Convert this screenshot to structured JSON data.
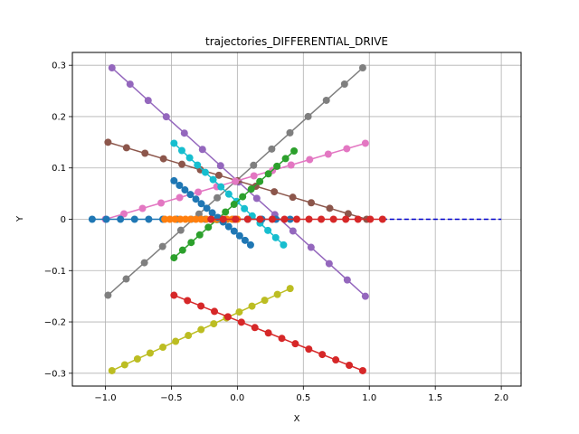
{
  "chart_data": {
    "type": "line",
    "title": "trajectories_DIFFERENTIAL_DRIVE",
    "xlabel": "X",
    "ylabel": "Y",
    "xlim": [
      -1.25,
      2.15
    ],
    "ylim": [
      -0.325,
      0.325
    ],
    "grid": true,
    "xticks": [
      -1.0,
      -0.5,
      0.0,
      0.5,
      1.0,
      1.5,
      2.0
    ],
    "xtick_labels": [
      "−1.0",
      "−0.5",
      "0.0",
      "0.5",
      "1.0",
      "1.5",
      "2.0"
    ],
    "yticks": [
      -0.3,
      -0.2,
      -0.1,
      0.0,
      0.1,
      0.2,
      0.3
    ],
    "ytick_labels": [
      "−0.3",
      "−0.2",
      "−0.1",
      "0",
      "0.1",
      "0.2",
      "0.3"
    ],
    "reference_line": {
      "x": [
        1.1,
        2.0
      ],
      "y": [
        0,
        0
      ],
      "color": "#0000cc",
      "style": "dashed"
    },
    "series": [
      {
        "color": "#9467bd",
        "x0": -0.95,
        "y0": 0.295,
        "x1": 0.97,
        "y1": -0.15,
        "n": 15
      },
      {
        "color": "#7f7f7f",
        "x0": -0.98,
        "y0": -0.148,
        "x1": 0.95,
        "y1": 0.295,
        "n": 15
      },
      {
        "color": "#bcbd22",
        "x0": -0.95,
        "y0": -0.295,
        "x1": 0.4,
        "y1": -0.135,
        "n": 15
      },
      {
        "color": "#d62728",
        "x0": -0.48,
        "y0": -0.148,
        "x1": 0.95,
        "y1": -0.295,
        "n": 15
      },
      {
        "color": "#8c564b",
        "x0": -0.98,
        "y0": 0.15,
        "x1": 0.98,
        "y1": 0.0,
        "n": 15
      },
      {
        "color": "#e377c2",
        "x0": -1.0,
        "y0": 0.0,
        "x1": 0.97,
        "y1": 0.148,
        "n": 15
      },
      {
        "color": "#17becf",
        "x0": -0.48,
        "y0": 0.148,
        "x1": 0.35,
        "y1": -0.05,
        "n": 15
      },
      {
        "color": "#2ca02c",
        "x0": -0.48,
        "y0": -0.075,
        "x1": 0.43,
        "y1": 0.133,
        "n": 15
      },
      {
        "color": "#1f77b4",
        "x0": -1.1,
        "y0": 0.0,
        "x1": 0.4,
        "y1": 0.0,
        "n": 15
      },
      {
        "color": "#ff7f0e",
        "x0": -0.55,
        "y0": 0.0,
        "x1": 0.0,
        "y1": 0.0,
        "n": 15
      },
      {
        "color": "#1f77b4",
        "x0": -0.48,
        "y0": 0.075,
        "x1": 0.1,
        "y1": -0.05,
        "n": 15
      },
      {
        "color": "#d62728",
        "x0": -0.2,
        "y0": 0.0,
        "x1": 1.1,
        "y1": 0.0,
        "n": 15
      }
    ]
  }
}
